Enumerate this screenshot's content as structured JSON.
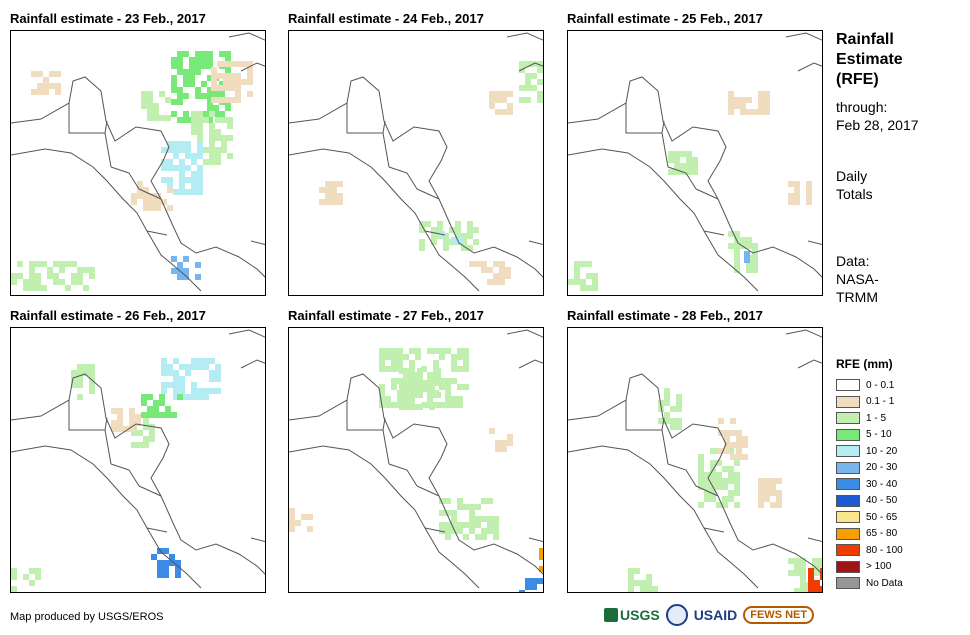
{
  "panels": [
    {
      "title": "Rainfall estimate - 23 Feb., 2017"
    },
    {
      "title": "Rainfall estimate - 24 Feb., 2017"
    },
    {
      "title": "Rainfall estimate - 25 Feb., 2017"
    },
    {
      "title": "Rainfall estimate - 26 Feb., 2017"
    },
    {
      "title": "Rainfall estimate - 27 Feb., 2017"
    },
    {
      "title": "Rainfall estimate - 28 Feb., 2017"
    }
  ],
  "side": {
    "title_line1": "Rainfall",
    "title_line2": "Estimate",
    "title_line3": "(RFE)",
    "through_label": "through:",
    "through_date": "Feb 28, 2017",
    "totals_line1": "Daily",
    "totals_line2": "Totals",
    "data_label": "Data:",
    "data_source_line1": "NASA-",
    "data_source_line2": "TRMM"
  },
  "legend": {
    "title": "RFE (mm)",
    "items": [
      {
        "label": "0 - 0.1",
        "color": "#ffffff"
      },
      {
        "label": "0.1 - 1",
        "color": "#f0dcbe"
      },
      {
        "label": "1 - 5",
        "color": "#c0efb0"
      },
      {
        "label": "5 - 10",
        "color": "#78e878"
      },
      {
        "label": "10 - 20",
        "color": "#b4ecf4"
      },
      {
        "label": "20 - 30",
        "color": "#78b4ee"
      },
      {
        "label": "30 - 40",
        "color": "#3c8ce6"
      },
      {
        "label": "40 - 50",
        "color": "#1e5ad2"
      },
      {
        "label": "50 - 65",
        "color": "#fae68c"
      },
      {
        "label": "65 - 80",
        "color": "#f5a000"
      },
      {
        "label": "80 - 100",
        "color": "#f03c00"
      },
      {
        "label": "> 100",
        "color": "#a01414"
      },
      {
        "label": "No Data",
        "color": "#969696"
      }
    ]
  },
  "credit": "Map produced by USGS/EROS",
  "logos": {
    "usgs": "USGS",
    "usaid": "USAID",
    "fews": "FEWS NET"
  }
}
